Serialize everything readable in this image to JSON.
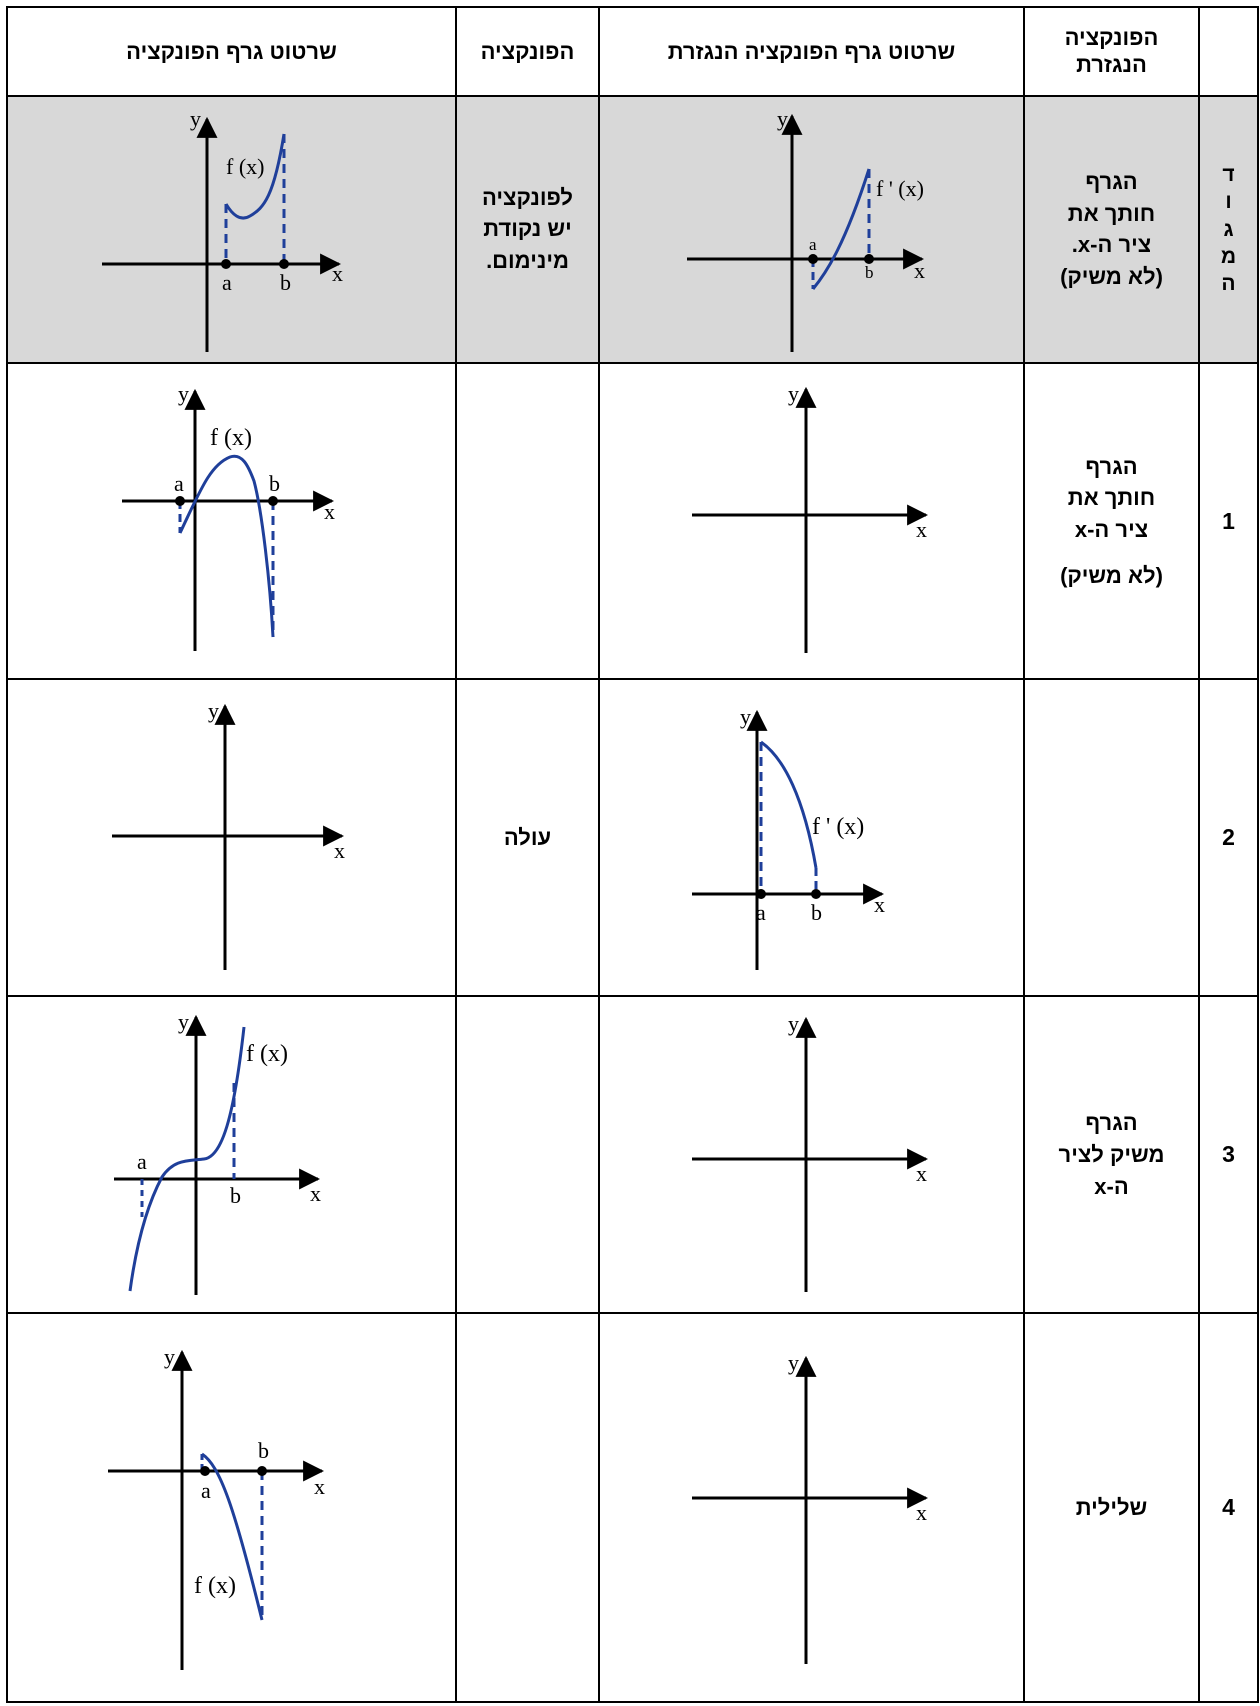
{
  "headers": {
    "function_graph": "שרטוט גרף הפונקציה",
    "function": "הפונקציה",
    "derivative_graph": "שרטוט גרף הפונקציה הנגזרת",
    "derivative": [
      "הפונקציה",
      "הנגזרת"
    ]
  },
  "axis_labels": {
    "x": "x",
    "y": "y",
    "a": "a",
    "b": "b",
    "f": "f (x)",
    "fp": "f ' (x)"
  },
  "rows": [
    {
      "label_letters": [
        "ד",
        "ו",
        "ג",
        "מ",
        "ה"
      ],
      "derivative_lines": [
        "הגרף",
        "חותך את",
        "ציר ה-x.",
        "(לא משיק)"
      ],
      "function_lines": [
        "לפונקציה",
        "יש נקודת",
        "מינימום."
      ]
    },
    {
      "number": "1",
      "derivative_lines": [
        "הגרף",
        "חותך את",
        "ציר ה-x",
        "(לא משיק)"
      ],
      "function_lines": []
    },
    {
      "number": "2",
      "derivative_lines": [],
      "function_lines": [
        "עולה"
      ]
    },
    {
      "number": "3",
      "derivative_lines": [
        "הגרף",
        "משיק לציר",
        "ה-x"
      ],
      "function_lines": []
    },
    {
      "number": "4",
      "derivative_lines": [
        "שלילית"
      ],
      "function_lines": []
    }
  ],
  "colors": {
    "curve": "#1f3f9a",
    "example_bg": "#d8d8d8"
  }
}
